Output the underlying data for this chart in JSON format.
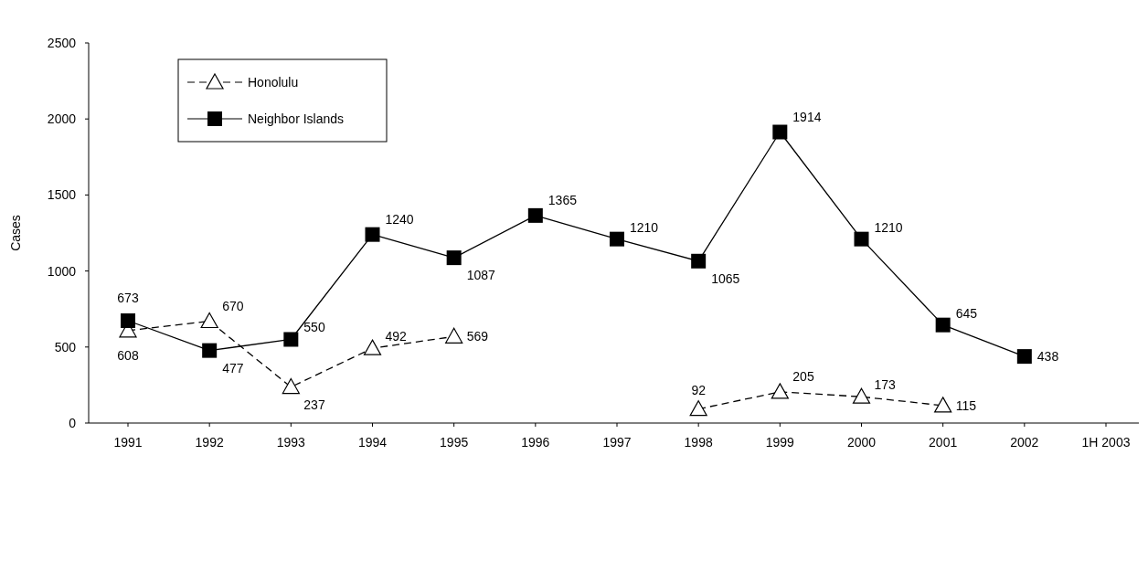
{
  "chart_data": {
    "type": "line",
    "ylabel": "Cases",
    "categories": [
      "1991",
      "1992",
      "1993",
      "1994",
      "1995",
      "1996",
      "1997",
      "1998",
      "1999",
      "2000",
      "2001",
      "2002",
      "1H 2003"
    ],
    "series": [
      {
        "name": "Honolulu",
        "color": "#000000",
        "marker": "triangle",
        "line_style": "dashed",
        "values": [
          608,
          670,
          237,
          492,
          569,
          null,
          null,
          92,
          205,
          173,
          115,
          null,
          null
        ]
      },
      {
        "name": "Neighbor Islands",
        "color": "#000000",
        "marker": "square",
        "line_style": "solid",
        "values": [
          673,
          477,
          550,
          1240,
          1087,
          1365,
          1210,
          1065,
          1914,
          1210,
          645,
          438,
          null
        ]
      }
    ],
    "ylim": [
      0,
      2500
    ],
    "yticks": [
      0,
      500,
      1000,
      1500,
      2000,
      2500
    ],
    "data_labels": true,
    "legend": "top left",
    "grid": false
  }
}
